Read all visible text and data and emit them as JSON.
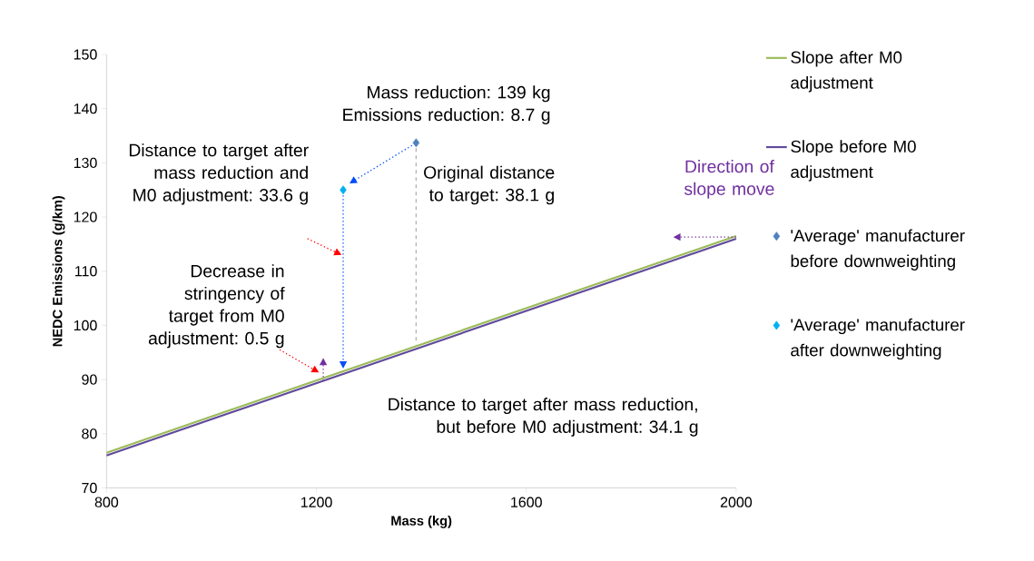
{
  "chart_data": {
    "type": "line",
    "xlabel": "Mass (kg)",
    "ylabel": "NEDC Emissions (g/km)",
    "xlim": [
      800,
      2000
    ],
    "ylim": [
      70,
      150
    ],
    "xticks": [
      800,
      1200,
      1600,
      2000
    ],
    "yticks": [
      70,
      80,
      90,
      100,
      110,
      120,
      130,
      140,
      150
    ],
    "grid": false,
    "legend": "right",
    "series": [
      {
        "name": "Slope after M0 adjustment",
        "color": "#9bbb59",
        "marker": "none",
        "x": [
          800,
          2000
        ],
        "values": [
          76.5,
          116.5
        ]
      },
      {
        "name": "Slope before M0 adjustment",
        "color": "#604a9b",
        "marker": "none",
        "x": [
          800,
          2000
        ],
        "values": [
          76,
          116
        ]
      },
      {
        "name": "'Average' manufacturer before downweighting",
        "type": "scatter",
        "color": "#4f81bd",
        "marker": "diamond",
        "x": [
          1390
        ],
        "values": [
          133.7
        ]
      },
      {
        "name": "'Average' manufacturer after downweighting",
        "type": "scatter",
        "color": "#00b0f0",
        "marker": "diamond",
        "x": [
          1251
        ],
        "values": [
          125.0
        ]
      }
    ],
    "annotations": [
      "Mass reduction: 139 kg Emissions reduction: 8.7 g",
      "Distance to target after mass reduction and M0 adjustment: 33.6 g",
      {
        "text": "Original distance to target: 38.1 g",
        "x": 1390,
        "y": 133.7
      },
      "Direction of slope move",
      "Decrease in stringency of target from M0 adjustment: 0.5 g",
      "Distance to target after mass reduction, but before M0 adjustment: 34.1 g"
    ]
  }
}
